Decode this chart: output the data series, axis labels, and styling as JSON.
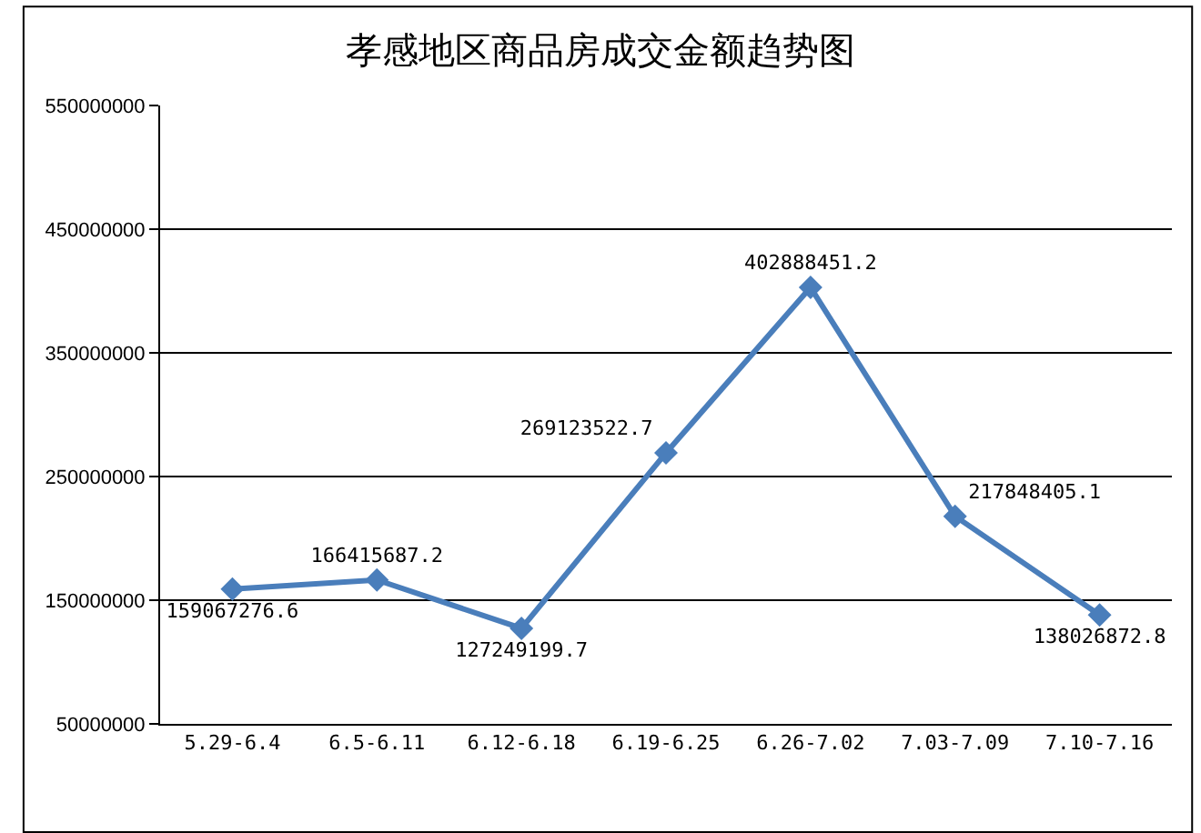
{
  "chart_data": {
    "type": "line",
    "title": "孝感地区商品房成交金额趋势图",
    "categories": [
      "5.29-6.4",
      "6.5-6.11",
      "6.12-6.18",
      "6.19-6.25",
      "6.26-7.02",
      "7.03-7.09",
      "7.10-7.16"
    ],
    "series": [
      {
        "color": "#4a7ebb",
        "values": [
          159067276.6,
          166415687.2,
          127249199.7,
          269123522.7,
          402888451.2,
          217848405.1,
          138026872.8
        ]
      }
    ],
    "ylim": [
      50000000,
      550000000
    ],
    "yticks": [
      50000000,
      150000000,
      250000000,
      350000000,
      450000000,
      550000000
    ],
    "grid": "y",
    "marker": "diamond",
    "line_style": "solid",
    "data_labels": true,
    "legend": false
  }
}
